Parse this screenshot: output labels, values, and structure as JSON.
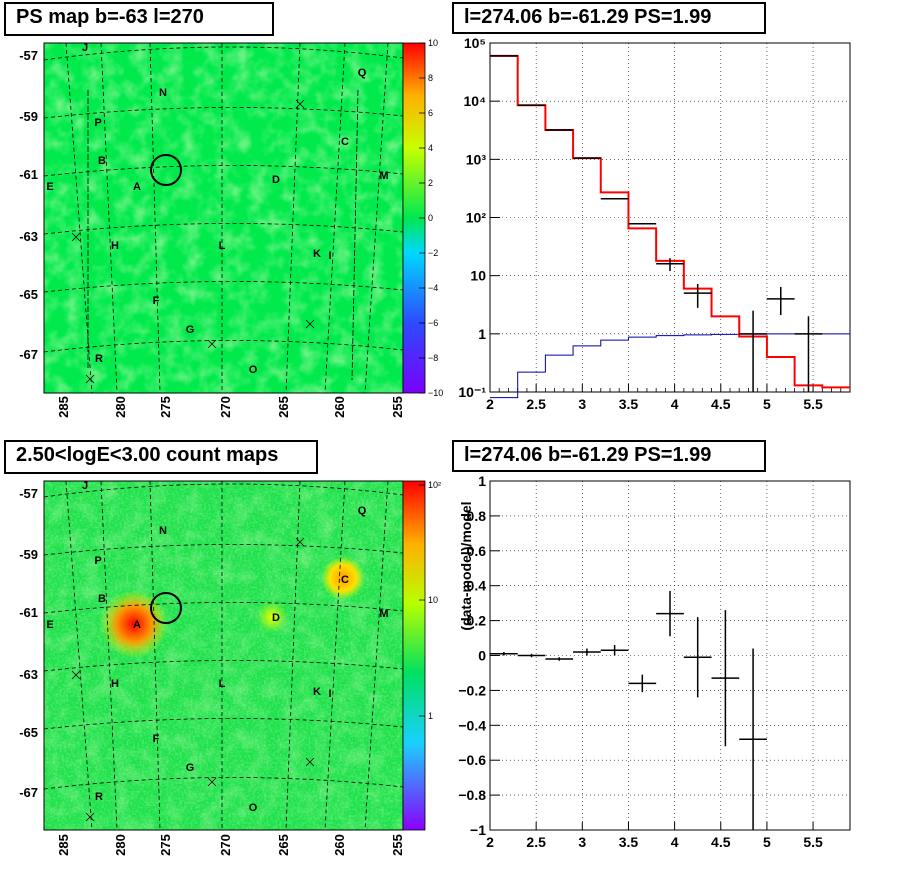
{
  "titles": {
    "tl": "PS map b=-63 l=270",
    "tr": "l=274.06 b=-61.29 PS=1.99",
    "bl": "2.50<logE<3.00 count maps",
    "br": "l=274.06 b=-61.29 PS=1.99"
  },
  "map_lat_labels": [
    "-57",
    "-59",
    "-61",
    "-63",
    "-65",
    "-67"
  ],
  "map_lon_labels": [
    "285",
    "280",
    "275",
    "270",
    "265",
    "260",
    "255"
  ],
  "map_sources": [
    "J",
    "Q",
    "N",
    "P",
    "C",
    "B",
    "A",
    "D",
    "M",
    "E",
    "H",
    "L",
    "K",
    "I",
    "F",
    "G",
    "R",
    "O"
  ],
  "ps_colorbar_labels": [
    "10",
    "8",
    "6",
    "4",
    "2",
    "0",
    "−2",
    "−4",
    "−6",
    "−8",
    "−10"
  ],
  "count_colorbar_labels": [
    "10²",
    "10",
    "1"
  ],
  "colors": {
    "data": "#000000",
    "model": "#ff0000",
    "background": "#0000aa",
    "map_green": "#00e34f"
  },
  "chart_data": [
    {
      "type": "line",
      "panel": "spectrum",
      "xlim": [
        2,
        5.9
      ],
      "ylim": [
        0.1,
        100000
      ],
      "yscale": "log",
      "x_ticks": [
        "2",
        "2.5",
        "3",
        "3.5",
        "4",
        "4.5",
        "5",
        "5.5"
      ],
      "y_ticks": [
        "10⁻¹",
        "1",
        "10",
        "10²",
        "10³",
        "10⁴",
        "10⁵"
      ],
      "series": [
        {
          "role": "data",
          "style": "errorbar",
          "points": [
            {
              "x": 2.15,
              "y": 60000,
              "xerr": 0.15
            },
            {
              "x": 2.45,
              "y": 8500,
              "xerr": 0.15
            },
            {
              "x": 2.75,
              "y": 3200,
              "xerr": 0.15
            },
            {
              "x": 3.05,
              "y": 1050,
              "xerr": 0.15
            },
            {
              "x": 3.35,
              "y": 210,
              "xerr": 0.15
            },
            {
              "x": 3.65,
              "y": 78,
              "xerr": 0.15
            },
            {
              "x": 3.95,
              "y": 16,
              "xerr": 0.15,
              "yerr_lo": 4,
              "yerr_hi": 4
            },
            {
              "x": 4.25,
              "y": 5,
              "xerr": 0.15,
              "yerr_lo": 2.2,
              "yerr_hi": 2.2
            },
            {
              "x": 4.85,
              "y": 1,
              "xerr": 0.15,
              "yerr_lo": 0.95,
              "yerr_hi": 1.5
            },
            {
              "x": 5.15,
              "y": 4,
              "xerr": 0.15,
              "yerr_lo": 1.9,
              "yerr_hi": 2.4
            },
            {
              "x": 5.45,
              "y": 1,
              "xerr": 0.15,
              "yerr_lo": 0.95,
              "yerr_hi": 1.0
            }
          ]
        },
        {
          "role": "model",
          "style": "step",
          "edges": [
            2.0,
            2.3,
            2.6,
            2.9,
            3.2,
            3.5,
            3.8,
            4.1,
            4.4,
            4.7,
            5.0,
            5.3,
            5.6,
            5.9
          ],
          "values": [
            60000,
            8500,
            3200,
            1050,
            270,
            65,
            18,
            6,
            2,
            0.9,
            0.4,
            0.13,
            0.12
          ]
        },
        {
          "role": "background",
          "style": "step",
          "edges": [
            2.0,
            2.3,
            2.6,
            2.9,
            3.2,
            3.5,
            3.8,
            4.1,
            4.4,
            4.7,
            5.0,
            5.3,
            5.6,
            5.9
          ],
          "values": [
            0.08,
            0.22,
            0.43,
            0.62,
            0.78,
            0.88,
            0.93,
            0.96,
            0.98,
            0.99,
            1.0,
            1.0,
            1.0
          ]
        }
      ]
    },
    {
      "type": "scatter",
      "panel": "residuals",
      "ylabel": "(data-model)/model",
      "xlim": [
        2,
        5.9
      ],
      "ylim": [
        -1,
        1
      ],
      "x_ticks": [
        "2",
        "2.5",
        "3",
        "3.5",
        "4",
        "4.5",
        "5",
        "5.5"
      ],
      "y_ticks": [
        "−1",
        "−0.8",
        "−0.6",
        "−0.4",
        "−0.2",
        "0",
        "0.2",
        "0.4",
        "0.6",
        "0.8",
        "1"
      ],
      "points": [
        {
          "x": 2.15,
          "y": 0.01,
          "xerr": 0.15,
          "yerr": 0.01
        },
        {
          "x": 2.45,
          "y": 0.0,
          "xerr": 0.15,
          "yerr": 0.01
        },
        {
          "x": 2.75,
          "y": -0.02,
          "xerr": 0.15,
          "yerr": 0.01
        },
        {
          "x": 3.05,
          "y": 0.02,
          "xerr": 0.15,
          "yerr": 0.02
        },
        {
          "x": 3.35,
          "y": 0.03,
          "xerr": 0.15,
          "yerr": 0.03
        },
        {
          "x": 3.65,
          "y": -0.16,
          "xerr": 0.15,
          "yerr": 0.05
        },
        {
          "x": 3.95,
          "y": 0.24,
          "xerr": 0.15,
          "yerr": 0.13
        },
        {
          "x": 4.25,
          "y": -0.01,
          "xerr": 0.15,
          "yerr": 0.23
        },
        {
          "x": 4.55,
          "y": -0.13,
          "xerr": 0.15,
          "yerr": 0.39
        },
        {
          "x": 4.85,
          "y": -0.48,
          "xerr": 0.15,
          "yerr": 0.52
        }
      ]
    }
  ]
}
